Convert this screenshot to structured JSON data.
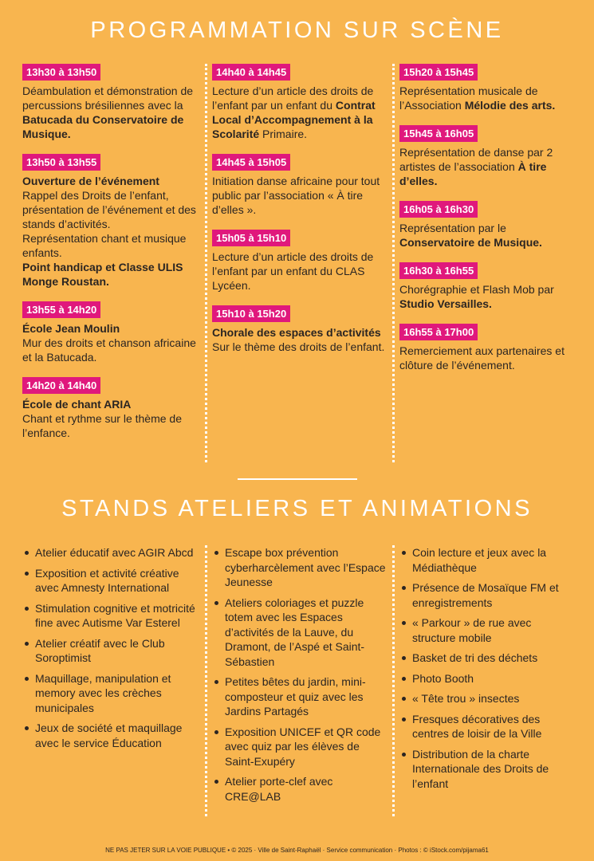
{
  "program": {
    "title": "PROGRAMMATION SUR SCÈNE",
    "columns": [
      [
        {
          "time": "13h30 à 13h50",
          "paragraphs": [
            [
              "Déambulation et démonstration de percussions brésiliennes avec la ",
              {
                "text": "Batucada du Conservatoire de Musique.",
                "bold": true
              }
            ]
          ]
        },
        {
          "time": "13h50 à 13h55",
          "paragraphs": [
            [
              {
                "text": "Ouverture de l’événement",
                "bold": true
              }
            ],
            [
              "Rappel des Droits de l’enfant, présentation de l’événement et des stands d’activités."
            ],
            [
              "Représentation chant et musique enfants."
            ],
            [
              {
                "text": "Point handicap et Classe ULIS Monge Roustan.",
                "bold": true
              }
            ]
          ]
        },
        {
          "time": "13h55 à 14h20",
          "paragraphs": [
            [
              {
                "text": "École Jean Moulin",
                "bold": true
              }
            ],
            [
              "Mur des droits et chanson africaine et la Batucada."
            ]
          ]
        },
        {
          "time": "14h20 à 14h40",
          "paragraphs": [
            [
              {
                "text": "École de chant ARIA",
                "bold": true
              }
            ],
            [
              "Chant et rythme sur le thème de l’enfance."
            ]
          ]
        }
      ],
      [
        {
          "time": "14h40 à 14h45",
          "paragraphs": [
            [
              "Lecture d’un article des droits de l’enfant par un enfant du ",
              {
                "text": "Contrat Local d’Accompagnement à la Scolarité",
                "bold": true
              },
              " Primaire."
            ]
          ]
        },
        {
          "time": "14h45 à 15h05",
          "paragraphs": [
            [
              "Initiation danse africaine pour tout public par l’association « À tire d’elles »."
            ]
          ]
        },
        {
          "time": "15h05 à 15h10",
          "paragraphs": [
            [
              "Lecture d’un article des droits de l’enfant par un enfant du CLAS Lycéen."
            ]
          ]
        },
        {
          "time": "15h10 à 15h20",
          "paragraphs": [
            [
              {
                "text": "Chorale des espaces d’activités",
                "bold": true
              }
            ],
            [
              "Sur le thème des droits de l’enfant."
            ]
          ]
        }
      ],
      [
        {
          "time": "15h20 à 15h45",
          "paragraphs": [
            [
              "Représentation musicale de l’Association ",
              {
                "text": "Mélodie des arts.",
                "bold": true
              }
            ]
          ]
        },
        {
          "time": "15h45 à 16h05",
          "paragraphs": [
            [
              "Représentation de danse par 2 artistes de l’association ",
              {
                "text": "À tire d’elles.",
                "bold": true
              }
            ]
          ]
        },
        {
          "time": "16h05 à 16h30",
          "paragraphs": [
            [
              "Représentation par le ",
              {
                "text": "Conservatoire de Musique.",
                "bold": true
              }
            ]
          ]
        },
        {
          "time": "16h30 à 16h55",
          "paragraphs": [
            [
              "Chorégraphie et Flash Mob par ",
              {
                "text": "Studio Versailles.",
                "bold": true
              }
            ]
          ]
        },
        {
          "time": "16h55 à 17h00",
          "paragraphs": [
            [
              "Remerciement aux partenaires et clôture de l’événement."
            ]
          ]
        }
      ]
    ]
  },
  "stands": {
    "title": "STANDS ATELIERS ET ANIMATIONS",
    "columns": [
      [
        "Atelier éducatif avec AGIR Abcd",
        "Exposition et activité créative avec Amnesty International",
        "Stimulation cognitive et motricité fine avec Autisme Var Esterel",
        "Atelier créatif avec le Club Soroptimist",
        "Maquillage, manipulation et memory avec les crèches municipales",
        "Jeux de société et maquillage avec le service Éducation"
      ],
      [
        "Escape box prévention cyberharcèlement avec l’Espace Jeunesse",
        "Ateliers coloriages et puzzle totem avec les Espaces d’activités de la Lauve, du Dramont, de l’Aspé et Saint-Sébastien",
        "Petites bêtes du jardin, mini-composteur et quiz avec les Jardins Partagés",
        "Exposition UNICEF et QR code avec quiz par les élèves de Saint-Exupéry",
        "Atelier porte-clef avec CRE@LAB"
      ],
      [
        "Coin lecture et jeux avec la Médiathèque",
        "Présence de Mosaïque FM et enregistrements",
        "« Parkour » de rue avec structure mobile",
        "Basket de tri des déchets",
        "Photo Booth",
        "« Tête trou » insectes",
        "Fresques décoratives des centres de loisir de la Ville",
        "Distribution de la charte Internationale des Droits de l’enfant"
      ]
    ]
  },
  "footer": "NE PAS JETER SUR LA VOIE PUBLIQUE • © 2025 · Ville de Saint-Raphaël · Service communication · Photos : © iStock.com/pijama61"
}
